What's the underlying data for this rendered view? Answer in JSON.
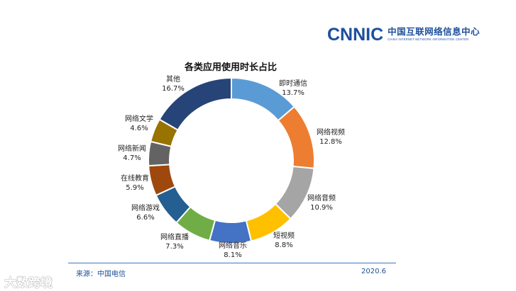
{
  "logo": {
    "mark": "CNNIC",
    "name_cn": "中国互联网络信息中心",
    "name_en": "CHINA INTERNET NETWORK INFORMATION CENTER"
  },
  "chart_data": {
    "type": "pie",
    "style": "donut",
    "title": "各类应用使用时长占比",
    "unit": "%",
    "slices": [
      {
        "label": "即时通信",
        "value": 13.7,
        "display": "13.7%",
        "color": "#5b9bd5"
      },
      {
        "label": "网络视频",
        "value": 12.8,
        "display": "12.8%",
        "color": "#ed7d31"
      },
      {
        "label": "网络音频",
        "value": 10.9,
        "display": "10.9%",
        "color": "#a5a5a5"
      },
      {
        "label": "短视频",
        "value": 8.8,
        "display": "8.8%",
        "color": "#ffc000"
      },
      {
        "label": "网络音乐",
        "value": 8.1,
        "display": "8.1%",
        "color": "#4472c4"
      },
      {
        "label": "网络直播",
        "value": 7.3,
        "display": "7.3%",
        "color": "#70ad47"
      },
      {
        "label": "网络游戏",
        "value": 6.6,
        "display": "6.6%",
        "color": "#255e91"
      },
      {
        "label": "在线教育",
        "value": 5.9,
        "display": "5.9%",
        "color": "#9e480e"
      },
      {
        "label": "网络新闻",
        "value": 4.7,
        "display": "4.7%",
        "color": "#636363"
      },
      {
        "label": "网络文学",
        "value": 4.6,
        "display": "4.6%",
        "color": "#997300"
      },
      {
        "label": "其他",
        "value": 16.7,
        "display": "16.7%",
        "color": "#264478"
      }
    ]
  },
  "footer": {
    "source": "来源：中国电信",
    "date": "2020.6"
  },
  "watermark": "大数跨境"
}
